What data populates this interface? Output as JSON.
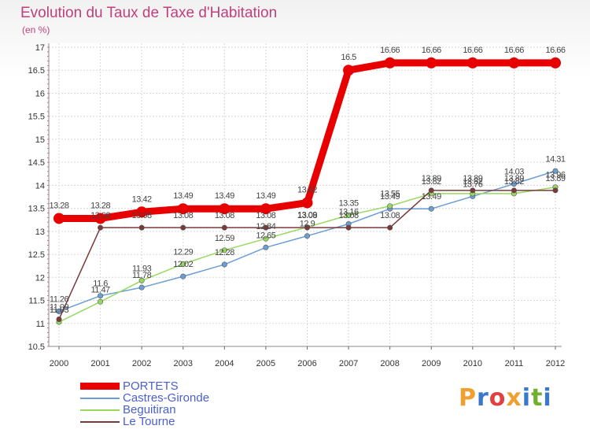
{
  "header": {
    "title": "Evolution du Taux de Taxe d'Habitation",
    "subtitle": "(en %)"
  },
  "logo": {
    "letters": [
      "P",
      "r",
      "o",
      "x",
      "i",
      "t",
      "i"
    ],
    "colors": [
      "#f0a030",
      "#3a78c8",
      "#e04040",
      "#f0a030",
      "#3a78c8",
      "#70b030",
      "#3a78c8"
    ]
  },
  "chart_data": {
    "type": "line",
    "x": [
      "2000",
      "2001",
      "2002",
      "2003",
      "2004",
      "2005",
      "2006",
      "2007",
      "2008",
      "2009",
      "2010",
      "2011",
      "2012"
    ],
    "ylim": [
      10.5,
      17
    ],
    "yticks": [
      "10.5",
      "11",
      "11.5",
      "12",
      "12.5",
      "13",
      "13.5",
      "14",
      "14.5",
      "15",
      "15.5",
      "16",
      "16.5",
      "17"
    ],
    "grid": true,
    "legend_position": "bottom-left",
    "series": [
      {
        "name": "PORTETS",
        "color": "#e80000",
        "values": [
          13.28,
          13.28,
          13.42,
          13.49,
          13.49,
          13.49,
          13.62,
          16.5,
          16.66,
          16.66,
          16.66,
          16.66,
          16.66
        ],
        "labels": [
          "13.28",
          "13.28",
          "13.42",
          "13.49",
          "13.49",
          "13.49",
          "13.62",
          "16.5",
          "16.66",
          "16.66",
          "16.66",
          "16.66",
          "16.66"
        ]
      },
      {
        "name": "Castres-Gironde",
        "color": "#6a9ed4",
        "values": [
          11.26,
          11.6,
          11.78,
          12.02,
          12.28,
          12.65,
          12.9,
          13.16,
          13.49,
          13.49,
          13.76,
          14.03,
          14.31
        ],
        "labels": [
          "11.26",
          "11.6",
          "11.78",
          "12.02",
          "12.28",
          "12.65",
          "12.9",
          "13.16",
          "13.49",
          "13.49",
          "13.76",
          "14.03",
          "14.31"
        ]
      },
      {
        "name": "Beguitiran",
        "color": "#98d860",
        "values": [
          11.03,
          11.47,
          11.93,
          12.29,
          12.59,
          12.84,
          13.09,
          13.35,
          13.55,
          13.82,
          13.82,
          13.82,
          13.96
        ],
        "labels": [
          "11.03",
          "11.47",
          "11.93",
          "12.29",
          "12.59",
          "12.84",
          "13.09",
          "13.35",
          "13.55",
          "13.82",
          "13.82",
          "13.82",
          "13.96"
        ]
      },
      {
        "name": "Le Tourne",
        "color": "#7a3a3a",
        "values": [
          11.09,
          13.08,
          13.08,
          13.08,
          13.08,
          13.08,
          13.08,
          13.08,
          13.08,
          13.89,
          13.89,
          13.89,
          13.89
        ],
        "labels": [
          "11.09",
          "13.08",
          "13.08",
          "13.08",
          "13.08",
          "13.08",
          "13.08",
          "13.08",
          "13.08",
          "13.89",
          "13.89",
          "13.89",
          "13.89"
        ]
      }
    ]
  }
}
